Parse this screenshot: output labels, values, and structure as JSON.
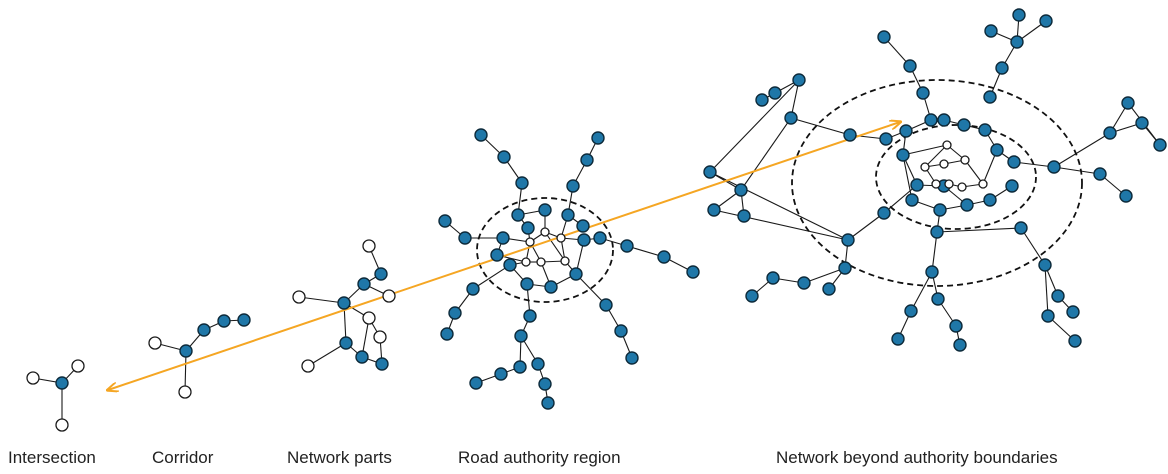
{
  "labels": {
    "intersection": "Intersection",
    "corridor": "Corridor",
    "network_parts": "Network parts",
    "road_authority_region": "Road authority region",
    "network_beyond": "Network beyond authority boundaries"
  },
  "colors": {
    "node_fill": "#1f77a8",
    "node_stroke": "#0d2a3a",
    "empty_node_fill": "#ffffff",
    "edge": "#1a1a1a",
    "scale_arrow": "#f5a623",
    "boundary": "#111111"
  },
  "arrow": {
    "direction": "bidirectional"
  }
}
